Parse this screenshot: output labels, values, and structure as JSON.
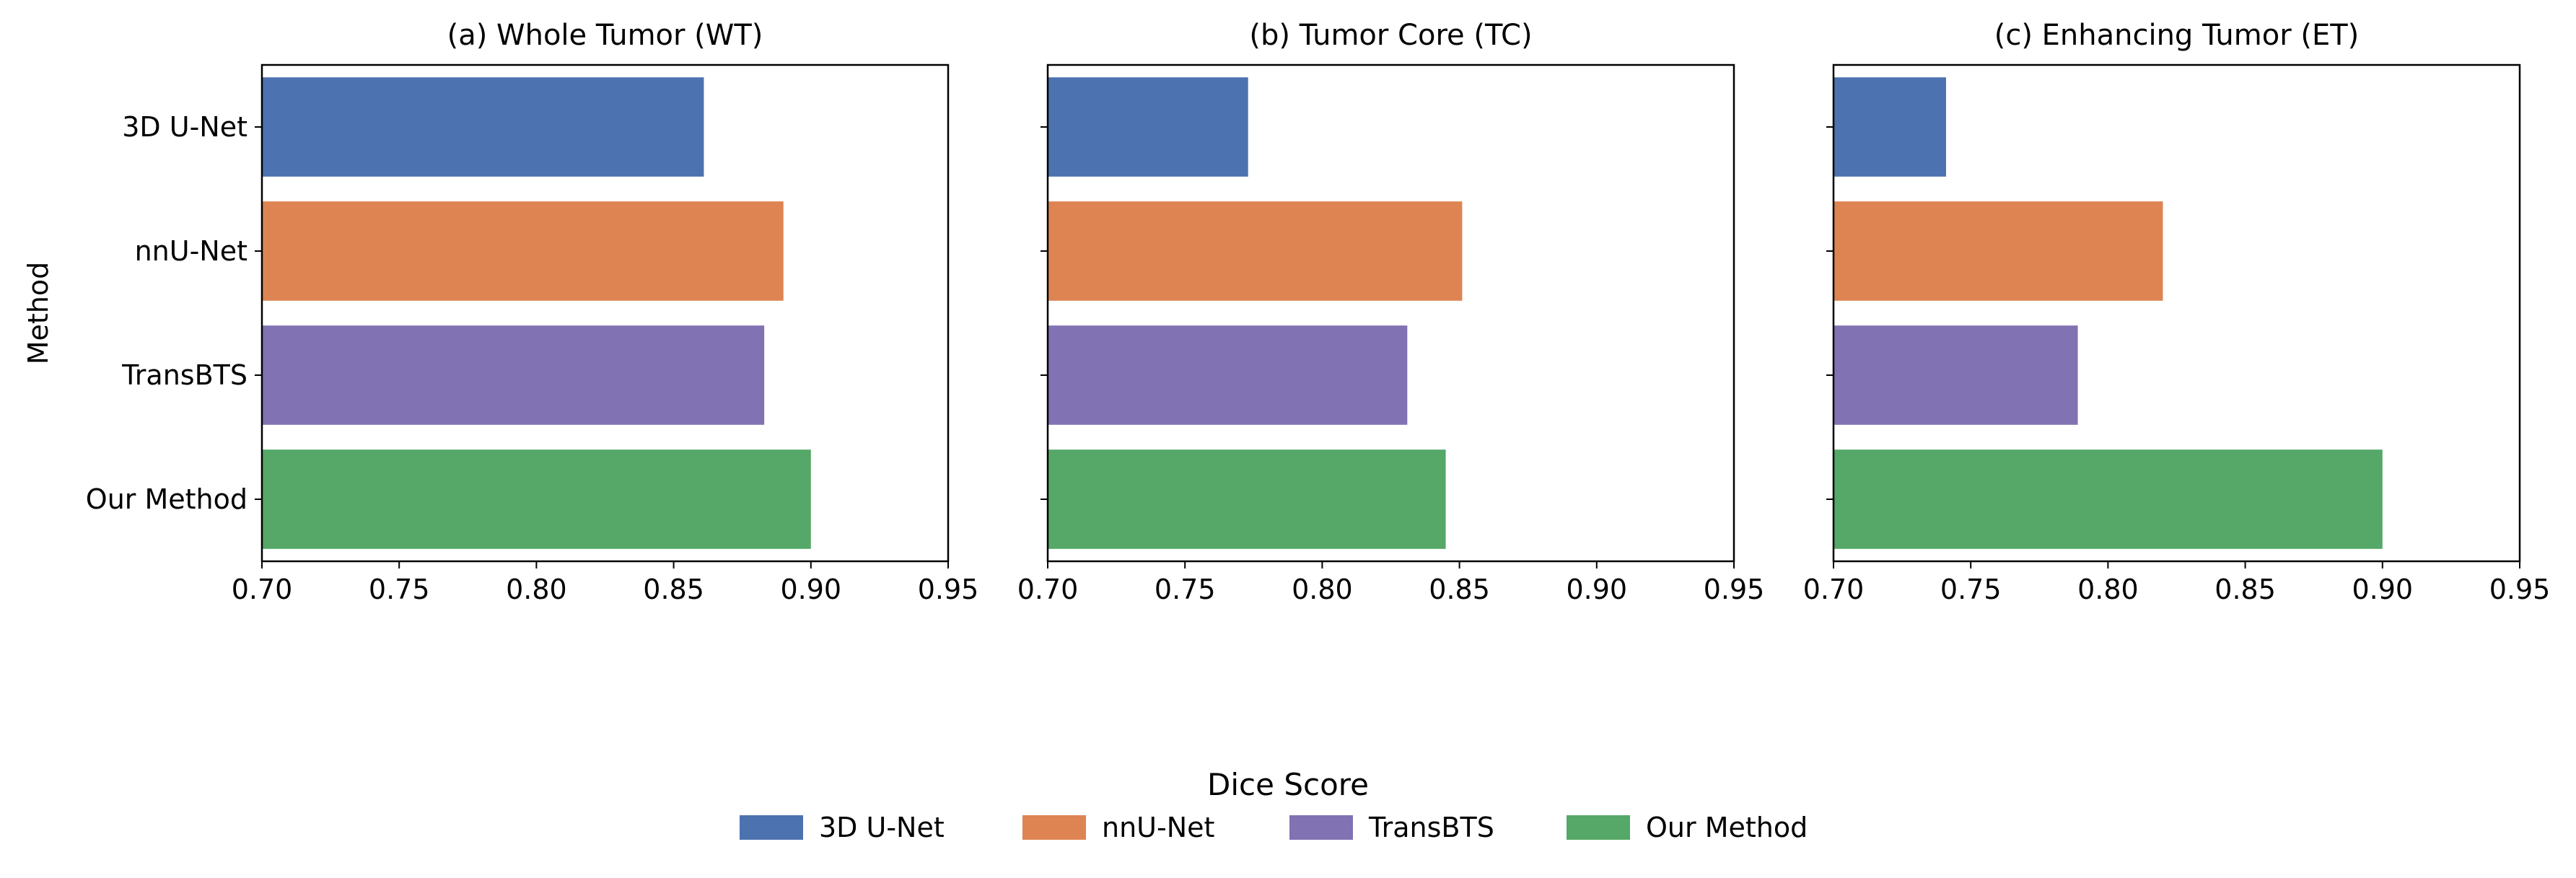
{
  "chart_data": [
    {
      "type": "bar",
      "orientation": "horizontal",
      "title": "(a) Whole Tumor (WT)",
      "categories": [
        "3D U-Net",
        "nnU-Net",
        "TransBTS",
        "Our Method"
      ],
      "values": [
        0.861,
        0.89,
        0.883,
        0.9
      ],
      "xlim": [
        0.7,
        0.95
      ],
      "xticks": [
        "0.70",
        "0.75",
        "0.80",
        "0.85",
        "0.90",
        "0.95"
      ],
      "ylabel": "Method",
      "show_ytick_labels": true
    },
    {
      "type": "bar",
      "orientation": "horizontal",
      "title": "(b) Tumor Core (TC)",
      "categories": [
        "3D U-Net",
        "nnU-Net",
        "TransBTS",
        "Our Method"
      ],
      "values": [
        0.773,
        0.851,
        0.831,
        0.845
      ],
      "xlim": [
        0.7,
        0.95
      ],
      "xticks": [
        "0.70",
        "0.75",
        "0.80",
        "0.85",
        "0.90",
        "0.95"
      ],
      "ylabel": "",
      "show_ytick_labels": false
    },
    {
      "type": "bar",
      "orientation": "horizontal",
      "title": "(c) Enhancing Tumor (ET)",
      "categories": [
        "3D U-Net",
        "nnU-Net",
        "TransBTS",
        "Our Method"
      ],
      "values": [
        0.741,
        0.82,
        0.789,
        0.9
      ],
      "xlim": [
        0.7,
        0.95
      ],
      "xticks": [
        "0.70",
        "0.75",
        "0.80",
        "0.85",
        "0.90",
        "0.95"
      ],
      "ylabel": "",
      "show_ytick_labels": false
    }
  ],
  "xlabel": "Dice Score",
  "legend": {
    "placement": "bottom-center",
    "entries": [
      "3D U-Net",
      "nnU-Net",
      "TransBTS",
      "Our Method"
    ]
  },
  "colors": {
    "3D U-Net": "#4c72b0",
    "nnU-Net": "#dd8452",
    "TransBTS": "#8172b3",
    "Our Method": "#55a868"
  }
}
